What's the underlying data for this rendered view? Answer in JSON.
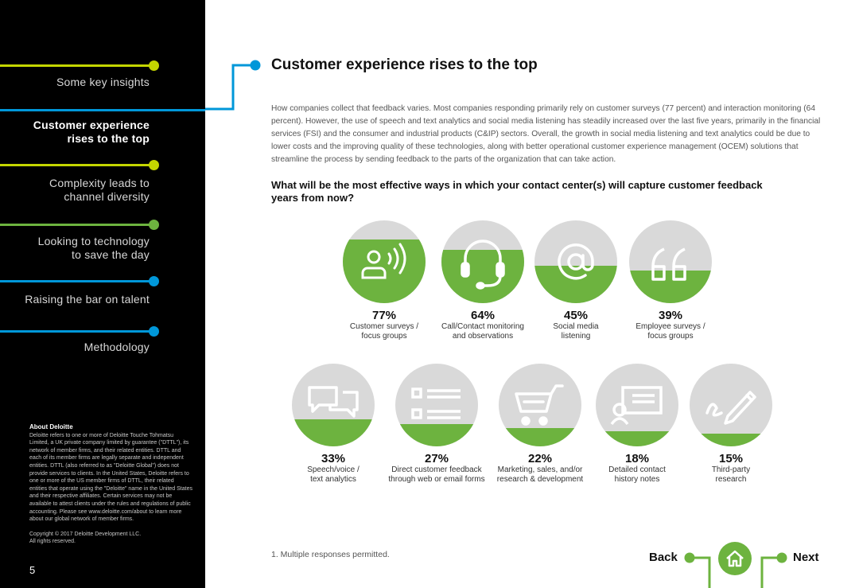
{
  "sidebar": {
    "items": [
      {
        "label": "Some key insights"
      },
      {
        "label": "Customer experience rises to the top",
        "lines": [
          "Customer experience",
          "rises to the top"
        ]
      },
      {
        "label": "Complexity leads to channel diversity",
        "lines": [
          "Complexity leads to",
          "channel diversity"
        ]
      },
      {
        "label": "Looking to technology to save the day",
        "lines": [
          "Looking to technology",
          "to save the day"
        ]
      },
      {
        "label": "Raising the bar on talent"
      },
      {
        "label": "Methodology"
      }
    ],
    "about": {
      "title": "About Deloitte",
      "text": "Deloitte refers to one or more of Deloitte Touche Tohmatsu Limited, a UK private company limited by guarantee (\"DTTL\"), its network of member firms, and their related entities. DTTL and each of its member firms are legally separate and independent entities. DTTL (also referred to as \"Deloitte Global\") does not provide services to clients. In the United States, Deloitte refers to one or more of the US member firms of DTTL, their related entities that operate using the \"Deloitte\" name in the United States and their respective affiliates. Certain services may not be available to attest clients under the rules and regulations of public accounting. Please see www.deloitte.com/about to learn more about our global network of member firms.",
      "copyright": "Copyright © 2017 Deloitte Development LLC.",
      "rights": "All rights reserved."
    },
    "page_number": "5"
  },
  "main": {
    "title": "Customer experience rises to the top",
    "intro": "How companies collect that feedback varies. Most companies responding primarily rely on customer surveys (77 percent) and interaction monitoring (64 percent). However, the use of speech and text analytics and social media listening has steadily increased over the last five years, primarily in the financial services (FSI) and the consumer and industrial products (C&IP) sectors. Overall, the growth in social media listening and text analytics could be due to lower costs and the improving quality of these technologies, along with better operational customer experience management (OCEM) solutions that streamline the process by sending feedback to the parts of the organization that can take action.",
    "question": "What will be the most effective ways in which your contact center(s) will capture customer feedback years from now?",
    "footnote": "1. Multiple responses permitted."
  },
  "stats": [
    {
      "pct": "77%",
      "value": 77,
      "line1": "Customer surveys /",
      "line2": "focus groups",
      "icon": "speaking-person-icon"
    },
    {
      "pct": "64%",
      "value": 64,
      "line1": "Call/Contact monitoring",
      "line2": "and observations",
      "icon": "headset-icon"
    },
    {
      "pct": "45%",
      "value": 45,
      "line1": "Social media",
      "line2": "listening",
      "icon": "at-sign-icon"
    },
    {
      "pct": "39%",
      "value": 39,
      "line1": "Employee surveys /",
      "line2": "focus groups",
      "icon": "quote-icon"
    },
    {
      "pct": "33%",
      "value": 33,
      "line1": "Speech/voice /",
      "line2": "text analytics",
      "icon": "chat-bubbles-icon"
    },
    {
      "pct": "27%",
      "value": 27,
      "line1": "Direct customer feedback",
      "line2": "through web or email forms",
      "icon": "form-list-icon"
    },
    {
      "pct": "22%",
      "value": 22,
      "line1": "Marketing, sales, and/or",
      "line2": "research & development",
      "icon": "shopping-cart-icon"
    },
    {
      "pct": "18%",
      "value": 18,
      "line1": "Detailed contact",
      "line2": "history notes",
      "icon": "contact-card-icon"
    },
    {
      "pct": "15%",
      "value": 15,
      "line1": "Third-party",
      "line2": "research",
      "icon": "pen-signature-icon"
    }
  ],
  "navigation": {
    "back_label": "Back",
    "next_label": "Next",
    "home_icon": "home-icon"
  },
  "colors": {
    "accent_green": "#6db33f",
    "lime": "#c4d600",
    "blue": "#0097d9",
    "circle_gray": "#d9d9d9"
  }
}
